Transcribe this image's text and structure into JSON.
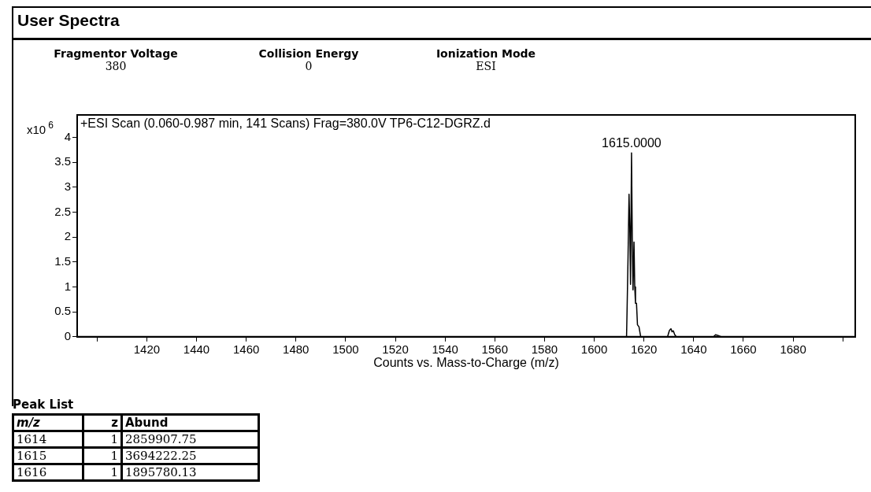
{
  "chart_data": {
    "type": "line",
    "title": "User Spectra",
    "xlabel": "Counts vs. Mass-to-Charge (m/z)",
    "ylabel": "x10$^{6}$",
    "x": [
      1392,
      1613,
      1613.2,
      1613.6,
      1614,
      1614.3,
      1614.6,
      1615,
      1615.3,
      1615.6,
      1616,
      1616.3,
      1616.6,
      1617,
      1617.4,
      1618,
      1618.7,
      1629.5,
      1630.2,
      1630.6,
      1630.9,
      1631.3,
      1631.8,
      1632.4,
      1633,
      1648,
      1648.8,
      1649.6,
      1651,
      1705
    ],
    "values": [
      0,
      0,
      0.5,
      1.6,
      2.86,
      2.2,
      1.05,
      3.69,
      2.0,
      0.94,
      1.9,
      1.0,
      0.67,
      0.67,
      0.24,
      0.2,
      0,
      0,
      0.12,
      0.15,
      0.16,
      0.1,
      0.12,
      0.04,
      0,
      0,
      0.04,
      0.03,
      0,
      0
    ],
    "color": "#000000",
    "marker": "none",
    "line_style": "solid",
    "grid": false,
    "xlim": [
      1392,
      1705
    ],
    "ylim": [
      0,
      4.45
    ],
    "xticks": [
      {
        "value": 1400,
        "label": null
      },
      1420,
      1440,
      1460,
      1480,
      1500,
      1520,
      1540,
      1560,
      1580,
      1600,
      1620,
      1640,
      1660,
      1680,
      {
        "value": 1700,
        "label": null
      }
    ],
    "yticks": [
      0,
      0.5,
      1,
      1.5,
      2,
      2.5,
      3,
      3.5,
      4
    ],
    "annotations": [
      "+ESI Scan (0.060-0.987 min, 141 Scans) Frag=380.0V TP6-C12-DGRZ.d",
      "Fragmentor Voltage",
      "380",
      "Collision Energy",
      "0",
      "Ionization Mode",
      "ESI",
      "Peak List",
      "m/z",
      "z",
      "Abund",
      "1614",
      "1",
      "2859907.75",
      "1615",
      "1",
      "3694222.25",
      "1616",
      "1",
      "1895780.13",
      {
        "text": "1615.0000",
        "x": 1615,
        "y": 3.69
      }
    ]
  }
}
